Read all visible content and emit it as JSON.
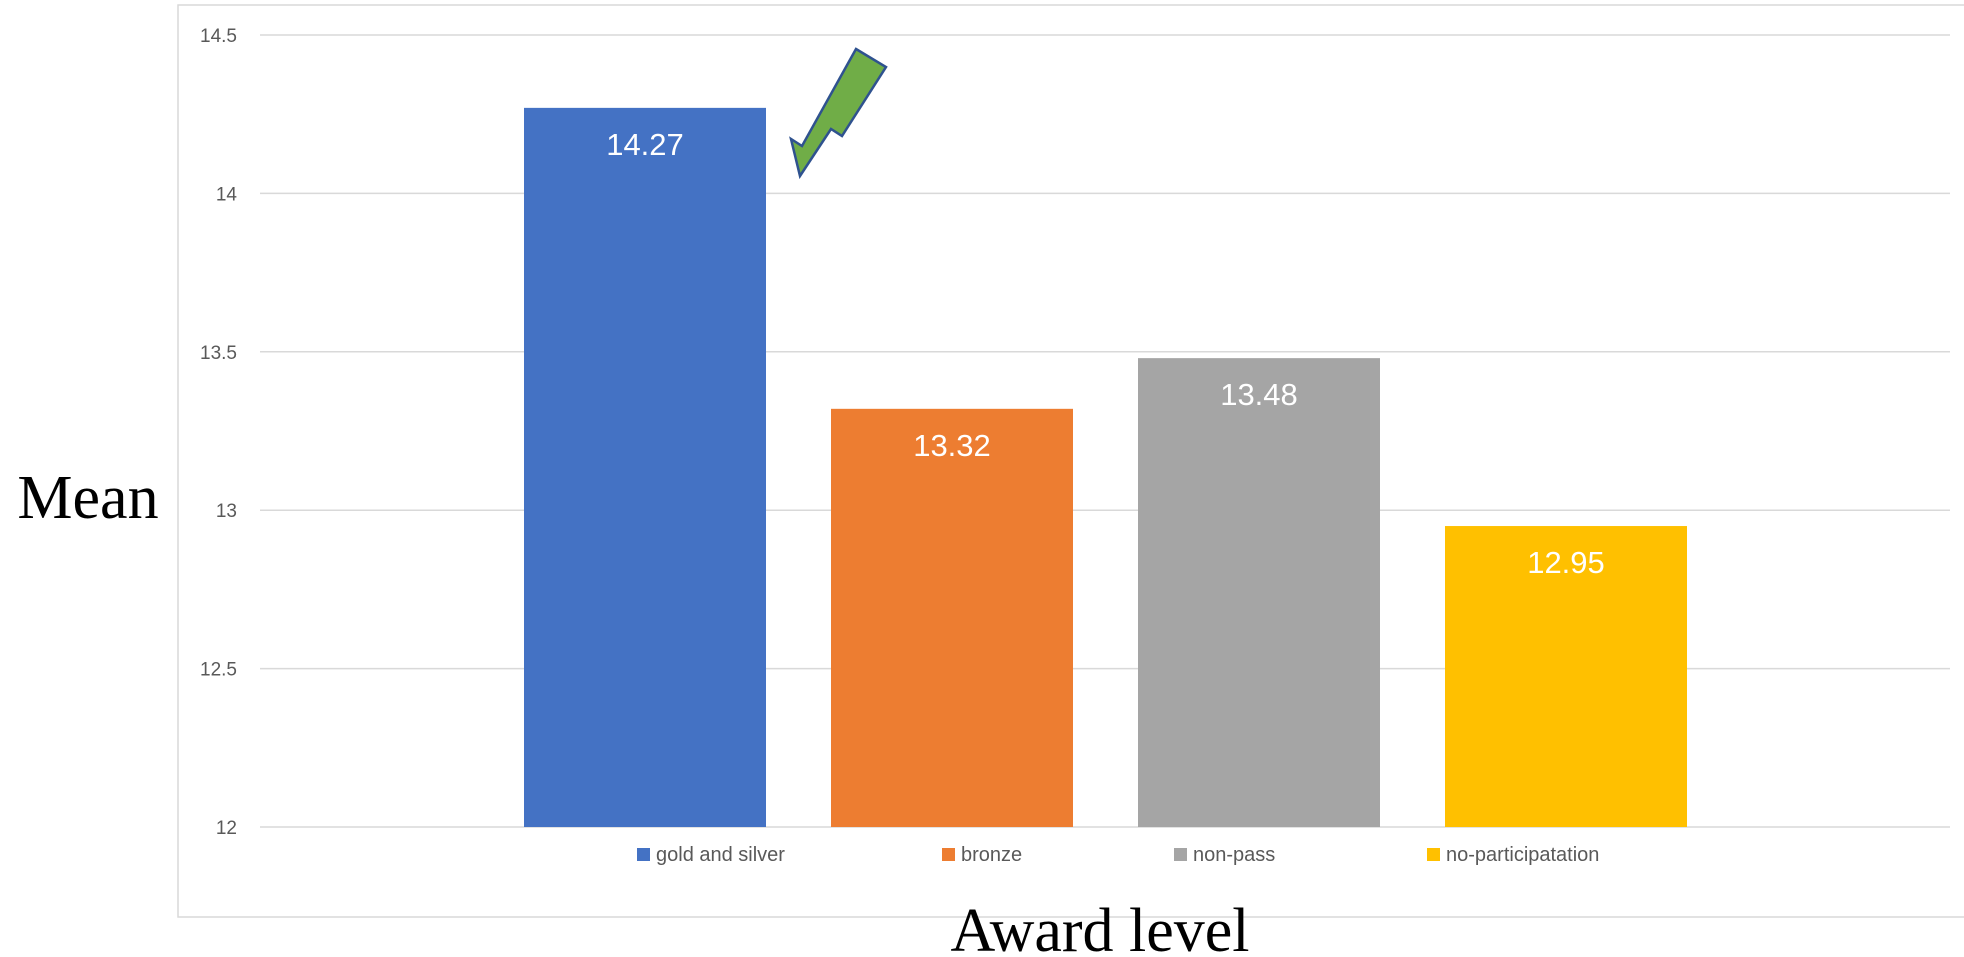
{
  "chart_data": {
    "type": "bar",
    "categories": [
      "gold and silver",
      "bronze",
      "non-pass",
      "no-participatation"
    ],
    "values": [
      14.27,
      13.32,
      13.48,
      12.95
    ],
    "data_labels": [
      "14.27",
      "13.32",
      "13.48",
      "12.95"
    ],
    "colors": [
      "#4472C4",
      "#ED7D31",
      "#A5A5A5",
      "#FFC000"
    ],
    "xlabel": "Award level",
    "ylabel": "Mean",
    "ylim": [
      12,
      14.5
    ],
    "yticks": [
      12,
      12.5,
      13,
      13.5,
      14,
      14.5
    ],
    "ytick_labels": [
      "12",
      "12.5",
      "13",
      "13.5",
      "14",
      "14.5"
    ],
    "grid": true,
    "legend_position": "bottom",
    "annotation": {
      "type": "arrow",
      "color": "#70AD47",
      "points_to": "gold and silver"
    }
  }
}
